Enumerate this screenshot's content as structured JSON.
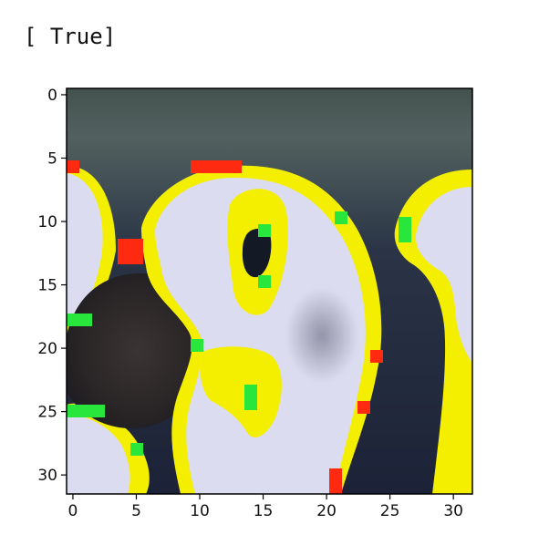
{
  "output": {
    "text": "[ True]"
  },
  "chart_data": {
    "type": "heatmap",
    "title": "",
    "xlabel": "",
    "ylabel": "",
    "xlim": [
      -0.5,
      31.5
    ],
    "ylim": [
      31.5,
      -0.5
    ],
    "x_ticks": [
      0,
      5,
      10,
      15,
      20,
      25,
      30
    ],
    "y_ticks": [
      0,
      5,
      10,
      15,
      20,
      25,
      30
    ],
    "grid": false,
    "legend": "none",
    "colors": {
      "background_top": "#52615f",
      "background_dark": "#1c2237",
      "white_blob": "#dcdcf0",
      "shadow": "#8b8ba0",
      "yellow": "#f4ef00",
      "red": "#ff2a0f",
      "green": "#28e63c",
      "dark_blob": "#2b2626"
    }
  }
}
